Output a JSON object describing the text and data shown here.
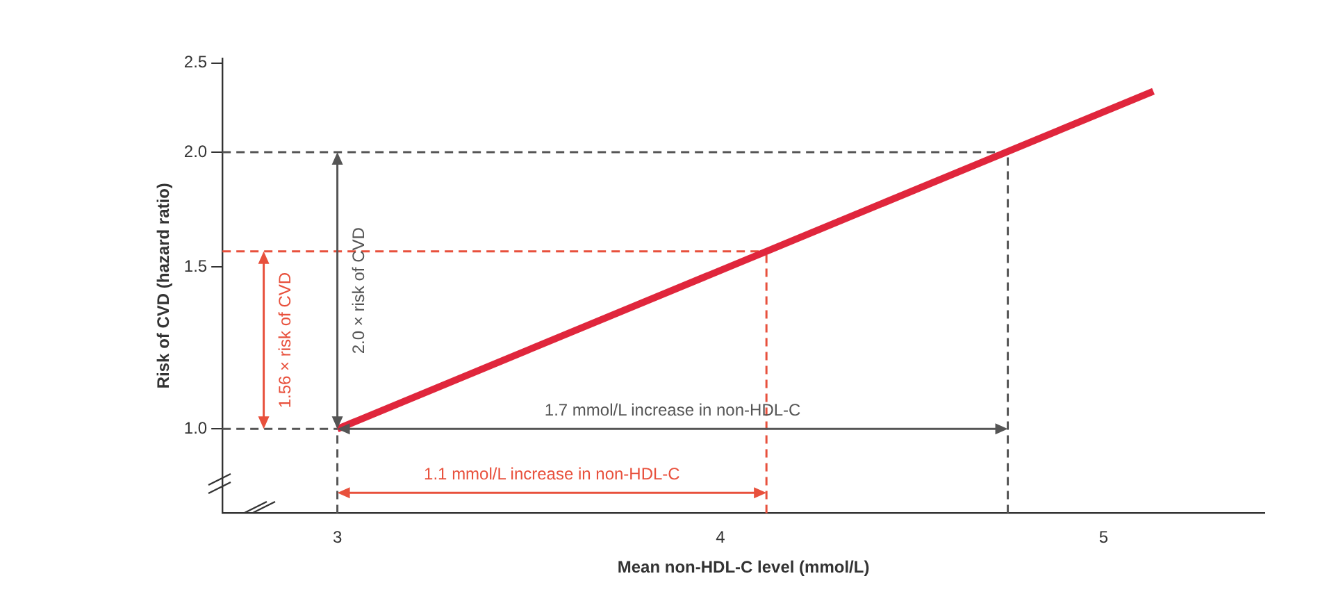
{
  "chart_data": {
    "type": "line",
    "xlabel": "Mean non-HDL-C level (mmol/L)",
    "ylabel": "Risk of CVD (hazard ratio)",
    "log": "y",
    "xlim": [
      2.7,
      5.42
    ],
    "ylim": [
      0.81,
      2.53
    ],
    "xticks": [
      3,
      4,
      5
    ],
    "yticks": [
      {
        "value": 1,
        "label": "1.0"
      },
      {
        "value": 1.5,
        "label": "1.5"
      },
      {
        "value": 2,
        "label": "2.0"
      },
      {
        "value": 2.5,
        "label": "2.5"
      }
    ],
    "grid": false,
    "legend": false,
    "marker": "none",
    "line_style": "solid",
    "series": [
      {
        "color": "#e0263c",
        "x": [
          3,
          5.13
        ],
        "values": [
          1.0,
          2.33
        ]
      }
    ],
    "ref_lines": [
      {
        "axis": "y",
        "value": 2.0,
        "color": "#555555",
        "line_style": "dashed"
      },
      {
        "axis": "y",
        "value": 1.56,
        "color": "#e8503c",
        "line_style": "dashed"
      },
      {
        "axis": "x",
        "value": 4.75,
        "color": "#555555",
        "line_style": "dashed"
      },
      {
        "axis": "x",
        "value": 4.12,
        "color": "#e8503c",
        "line_style": "dashed"
      },
      {
        "axis": "x",
        "value": 3,
        "color": "#555555",
        "line_style": "dashed"
      },
      {
        "axis": "y",
        "value": 1.0,
        "color": "#555555",
        "line_style": "dashed"
      }
    ],
    "annotations": [
      "2.0 × risk of CVD",
      "1.56 × risk of CVD",
      "1.7 mmol/L increase in non-HDL-C",
      "1.1 mmol/L increase in non-HDL-C"
    ]
  }
}
